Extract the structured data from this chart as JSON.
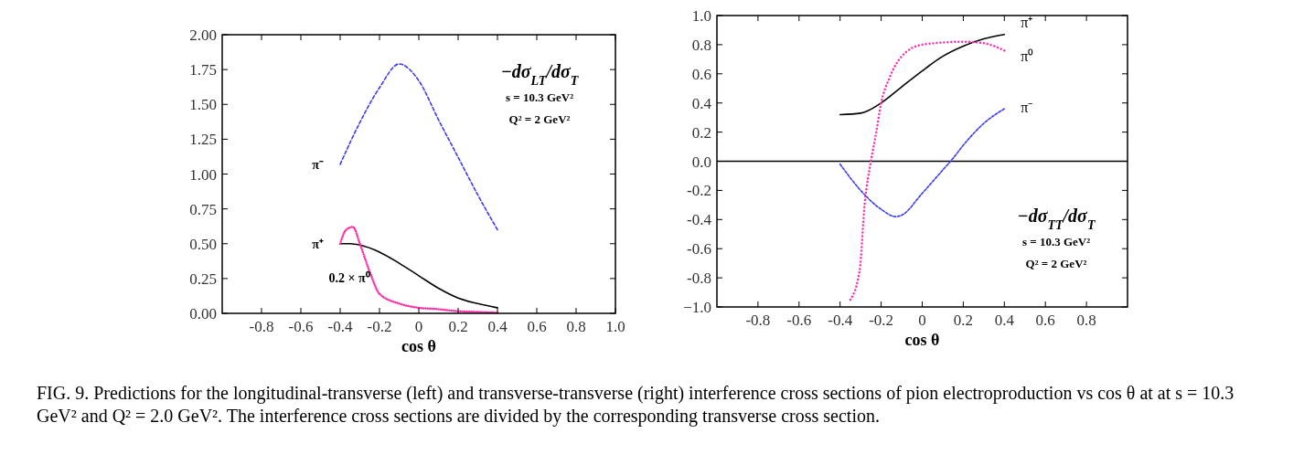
{
  "chart_data": [
    {
      "type": "line",
      "title": "−dσ$_{LT}$/dσ$_{T}$",
      "xlabel": "cos θ",
      "xlim": [
        -1,
        1
      ],
      "xticks": [
        {
          "value": -0.8,
          "label": "-0.8"
        },
        {
          "value": -0.6,
          "label": "-0.6"
        },
        {
          "value": -0.4,
          "label": "-0.4"
        },
        {
          "value": -0.2,
          "label": "-0.2"
        },
        0,
        0.2,
        0.4,
        0.6,
        0.8,
        {
          "value": 1,
          "label": "1.0"
        }
      ],
      "ylim": [
        0,
        2
      ],
      "yticks": [
        {
          "value": 0,
          "label": "0.00"
        },
        {
          "value": 0.25,
          "label": "0.25"
        },
        {
          "value": 0.5,
          "label": "0.50"
        },
        {
          "value": 0.75,
          "label": "0.75"
        },
        {
          "value": 1,
          "label": "1.00"
        },
        {
          "value": 1.25,
          "label": "1.25"
        },
        {
          "value": 1.5,
          "label": "1.50"
        },
        {
          "value": 1.75,
          "label": "1.75"
        },
        {
          "value": 2,
          "label": "2.00"
        }
      ],
      "grid": false,
      "series": [
        {
          "name": "π⁻",
          "color": "#3b3bf5",
          "line_style": "dashed",
          "x": [
            -0.4,
            -0.3,
            -0.2,
            -0.1,
            0,
            0.1,
            0.2,
            0.3,
            0.4
          ],
          "values": [
            1.07,
            1.37,
            1.62,
            1.79,
            1.67,
            1.39,
            1.12,
            0.85,
            0.6
          ]
        },
        {
          "name": "π⁺",
          "color": "#000000",
          "line_style": "solid",
          "x": [
            -0.4,
            -0.35,
            -0.3,
            -0.2,
            -0.1,
            0,
            0.1,
            0.2,
            0.3,
            0.4
          ],
          "values": [
            0.5,
            0.5,
            0.49,
            0.44,
            0.36,
            0.27,
            0.18,
            0.11,
            0.07,
            0.04
          ]
        },
        {
          "name": "0.2 × π⁰",
          "color": "#ff2fa8",
          "line_style": "dotted",
          "x": [
            -0.4,
            -0.37,
            -0.335,
            -0.3,
            -0.25,
            -0.2,
            -0.1,
            0,
            0.1,
            0.2,
            0.3,
            0.4
          ],
          "values": [
            0.5,
            0.6,
            0.62,
            0.5,
            0.3,
            0.14,
            0.07,
            0.04,
            0.03,
            0.015,
            0.01,
            0.005
          ]
        }
      ],
      "annotations": [
        "s = 10.3 GeV²",
        "Q² = 2 GeV²",
        "FIG. 9.  Predictions for the longitudinal-transverse (left) and transverse-transverse (right) interference cross sections of pion electroproduction vs cos θ at at s = 10.3 GeV² and Q² = 2.0 GeV². The interference cross sections are divided by the corresponding transverse cross section."
      ]
    },
    {
      "type": "line",
      "title": "−dσ$_{TT}$/dσ$_{T}$",
      "xlabel": "cos θ",
      "xlim": [
        -1,
        1
      ],
      "xticks": [
        {
          "value": -0.8,
          "label": "-0.8"
        },
        {
          "value": -0.6,
          "label": "-0.6"
        },
        {
          "value": -0.4,
          "label": "-0.4"
        },
        {
          "value": -0.2,
          "label": "-0.2"
        },
        0,
        0.2,
        0.4,
        0.6,
        0.8
      ],
      "ylim": [
        -1,
        1
      ],
      "yticks": [
        {
          "value": -1,
          "label": "−1.0"
        },
        {
          "value": -0.8,
          "label": "-0.8"
        },
        {
          "value": -0.6,
          "label": "-0.6"
        },
        {
          "value": -0.4,
          "label": "-0.4"
        },
        {
          "value": -0.2,
          "label": "-0.2"
        },
        {
          "value": 0,
          "label": "0.0"
        },
        0.2,
        0.4,
        0.6,
        0.8,
        {
          "value": 1,
          "label": "1.0"
        }
      ],
      "grid": false,
      "ref_lines": [
        {
          "axis": "y",
          "value": 0,
          "color": "#000000"
        }
      ],
      "series": [
        {
          "name": "π⁺",
          "color": "#000000",
          "line_style": "solid",
          "x": [
            -0.4,
            -0.3,
            -0.2,
            -0.1,
            0,
            0.1,
            0.2,
            0.3,
            0.4
          ],
          "values": [
            0.32,
            0.33,
            0.4,
            0.51,
            0.62,
            0.72,
            0.79,
            0.84,
            0.87
          ]
        },
        {
          "name": "π⁰",
          "color": "#ff2fa8",
          "line_style": "dotted",
          "x": [
            -0.35,
            -0.305,
            -0.28,
            -0.25,
            -0.225,
            -0.2,
            -0.16,
            -0.1,
            0,
            0.2,
            0.3,
            0.4
          ],
          "values": [
            -0.95,
            -0.75,
            -0.29,
            0,
            0.19,
            0.4,
            0.57,
            0.72,
            0.8,
            0.82,
            0.81,
            0.76
          ]
        },
        {
          "name": "π⁻",
          "color": "#3b3bf5",
          "line_style": "dashed",
          "x": [
            -0.4,
            -0.3,
            -0.2,
            -0.13,
            -0.1,
            0,
            0.1,
            0.15,
            0.2,
            0.3,
            0.4
          ],
          "values": [
            -0.02,
            -0.2,
            -0.33,
            -0.38,
            -0.37,
            -0.22,
            -0.06,
            0.02,
            0.11,
            0.26,
            0.36
          ]
        }
      ],
      "annotations": [
        "s = 10.3 GeV²",
        "Q² = 2 GeV²"
      ]
    }
  ]
}
